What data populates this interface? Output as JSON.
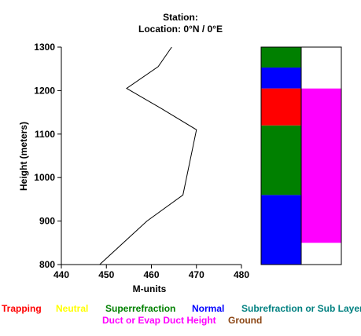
{
  "header": {
    "station_label": "Station:",
    "location_label": "Location:",
    "location_value": "0°N /   0°E"
  },
  "chart_data": {
    "type": "line",
    "xlabel": "M-units",
    "ylabel": "Height (meters)",
    "xlim": [
      440,
      480
    ],
    "ylim": [
      800,
      1300
    ],
    "x_ticks": [
      440,
      450,
      460,
      470,
      480
    ],
    "y_ticks": [
      800,
      900,
      1000,
      1100,
      1200,
      1300
    ],
    "series": [
      {
        "points": [
          {
            "x": 448.5,
            "y": 800
          },
          {
            "x": 459.0,
            "y": 900
          },
          {
            "x": 467.0,
            "y": 960
          },
          {
            "x": 470.0,
            "y": 1110
          },
          {
            "x": 462.0,
            "y": 1160
          },
          {
            "x": 454.5,
            "y": 1205
          },
          {
            "x": 461.5,
            "y": 1255
          },
          {
            "x": 464.5,
            "y": 1300
          }
        ]
      }
    ]
  },
  "layer_columns": {
    "left": [
      {
        "from": 800,
        "to": 960,
        "class": "Normal"
      },
      {
        "from": 960,
        "to": 1120,
        "class": "Superrefraction"
      },
      {
        "from": 1120,
        "to": 1205,
        "class": "Trapping"
      },
      {
        "from": 1205,
        "to": 1253,
        "class": "Normal"
      },
      {
        "from": 1253,
        "to": 1300,
        "class": "Superrefraction"
      }
    ],
    "right": [
      {
        "from": 800,
        "to": 850,
        "class": "None"
      },
      {
        "from": 850,
        "to": 1205,
        "class": "Duct or Evap Duct Height"
      },
      {
        "from": 1205,
        "to": 1300,
        "class": "None"
      }
    ]
  },
  "legend": {
    "items": [
      {
        "label": "Trapping",
        "color": "#ff0000"
      },
      {
        "label": "Neutral",
        "color": "#ffff00"
      },
      {
        "label": "Superrefraction",
        "color": "#008000"
      },
      {
        "label": "Normal",
        "color": "#0000ff"
      },
      {
        "label": "Subrefraction or Sub Layer",
        "color": "#008080"
      },
      {
        "label": "Duct or Evap Duct Height",
        "color": "#ff00ff"
      },
      {
        "label": "Ground",
        "color": "#8b4513"
      }
    ]
  },
  "colors": {
    "Trapping": "#ff0000",
    "Neutral": "#ffff00",
    "Superrefraction": "#008000",
    "Normal": "#0000ff",
    "Subrefraction or Sub Layer": "#008080",
    "Duct or Evap Duct Height": "#ff00ff",
    "Ground": "#8b4513",
    "None": "#ffffff"
  }
}
